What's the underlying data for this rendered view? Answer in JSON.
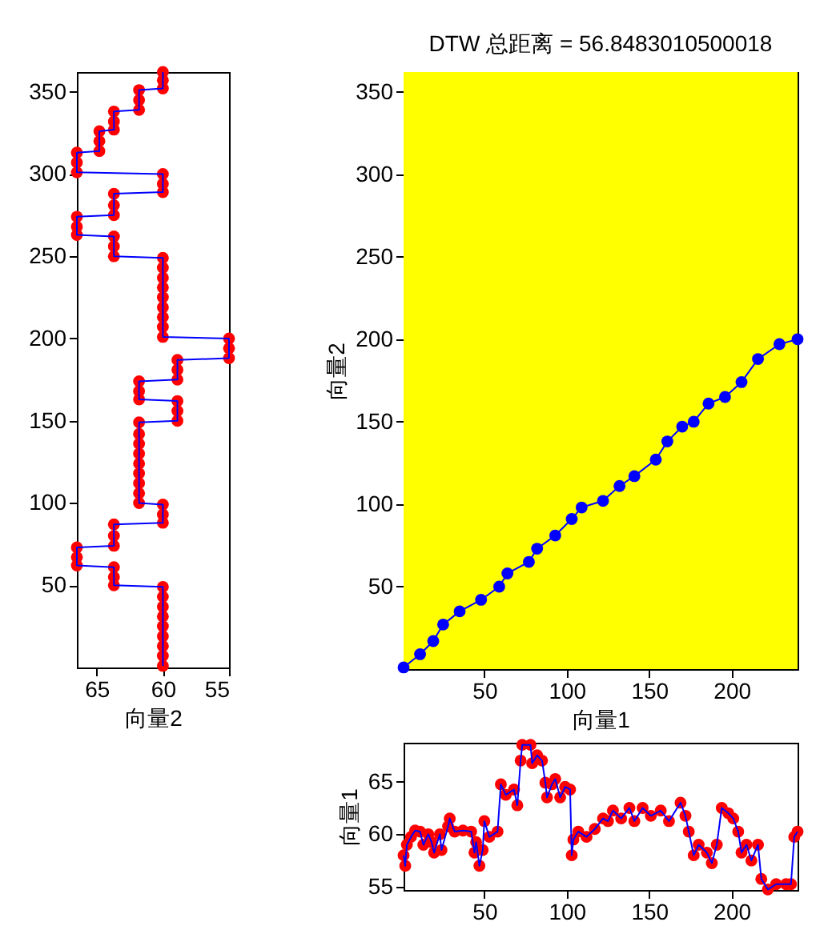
{
  "chart_data": [
    {
      "type": "line",
      "orientation": "horizontal",
      "xlabel": "向量2",
      "xlim": [
        66.5,
        55
      ],
      "xticks": [
        65,
        60,
        55
      ],
      "ylim": [
        0,
        362
      ],
      "yticks": [
        50,
        100,
        150,
        200,
        250,
        300,
        350
      ],
      "x": [
        1,
        7,
        13,
        19,
        25,
        31,
        37,
        43,
        49,
        50,
        55,
        61,
        62,
        67,
        73,
        74,
        80,
        87,
        88,
        93,
        99,
        100,
        106,
        112,
        118,
        124,
        130,
        136,
        142,
        149,
        150,
        156,
        162,
        163,
        168,
        174,
        175,
        181,
        187,
        188,
        194,
        200,
        201,
        207,
        213,
        219,
        225,
        231,
        237,
        243,
        249,
        250,
        256,
        262,
        263,
        268,
        274,
        275,
        281,
        288,
        289,
        294,
        300,
        301,
        307,
        313,
        314,
        320,
        326,
        327,
        332,
        338,
        339,
        345,
        351,
        352,
        357,
        362
      ],
      "series": [
        {
          "type": "scatter",
          "color": "#ff0000",
          "marker": "circle",
          "values": [
            60,
            60,
            60,
            60,
            60,
            60,
            60,
            60,
            60,
            63.7,
            63.7,
            63.7,
            66.5,
            66.5,
            66.5,
            63.7,
            63.7,
            63.7,
            60,
            60,
            60,
            61.8,
            61.8,
            61.8,
            61.8,
            61.8,
            61.8,
            61.8,
            61.8,
            61.8,
            58.9,
            58.9,
            58.9,
            61.8,
            61.8,
            61.8,
            58.9,
            58.9,
            58.9,
            55,
            55,
            55,
            60,
            60,
            60,
            60,
            60,
            60,
            60,
            60,
            60,
            63.7,
            63.7,
            63.7,
            66.5,
            66.5,
            66.5,
            63.7,
            63.7,
            63.7,
            60,
            60,
            60,
            66.5,
            66.5,
            66.5,
            64.8,
            64.8,
            64.8,
            63.7,
            63.7,
            63.7,
            61.8,
            61.8,
            61.8,
            60,
            60,
            60
          ]
        },
        {
          "type": "line",
          "color": "#0000ff",
          "line_style": "solid",
          "values": [
            60,
            60,
            60,
            60,
            60,
            60,
            60,
            60,
            60,
            63.7,
            63.7,
            63.7,
            66.5,
            66.5,
            66.5,
            63.7,
            63.7,
            63.7,
            60,
            60,
            60,
            61.8,
            61.8,
            61.8,
            61.8,
            61.8,
            61.8,
            61.8,
            61.8,
            61.8,
            58.9,
            58.9,
            58.9,
            61.8,
            61.8,
            61.8,
            58.9,
            58.9,
            58.9,
            55,
            55,
            55,
            60,
            60,
            60,
            60,
            60,
            60,
            60,
            60,
            60,
            63.7,
            63.7,
            63.7,
            66.5,
            66.5,
            66.5,
            63.7,
            63.7,
            63.7,
            60,
            60,
            60,
            66.5,
            66.5,
            66.5,
            64.8,
            64.8,
            64.8,
            63.7,
            63.7,
            63.7,
            61.8,
            61.8,
            61.8,
            60,
            60,
            60
          ]
        }
      ]
    },
    {
      "type": "line",
      "title": "DTW 总距离 = 56.8483010500018",
      "xlabel": "向量1",
      "ylabel": "向量2",
      "xlim": [
        1,
        240
      ],
      "xticks": [
        50,
        100,
        150,
        200
      ],
      "ylim": [
        0,
        362
      ],
      "yticks": [
        50,
        100,
        150,
        200,
        250,
        300,
        350
      ],
      "marker": "circle",
      "bands": [
        {
          "axis": "x",
          "from": 1,
          "to": 240,
          "color": "#ffff00"
        }
      ],
      "x": [
        1,
        11,
        19,
        25,
        35,
        48,
        59,
        64,
        77,
        82,
        93,
        103,
        109,
        122,
        132,
        141,
        154,
        161,
        170,
        177,
        186,
        196,
        206,
        216,
        229,
        240
      ],
      "series": [
        {
          "color": "#0000ff",
          "line_style": "solid",
          "values": [
            1,
            9,
            17,
            27,
            35,
            42,
            50,
            58,
            65,
            73,
            81,
            91,
            98,
            102,
            111,
            117,
            127,
            138,
            147,
            150,
            161,
            165,
            174,
            188,
            197,
            200
          ]
        }
      ]
    },
    {
      "type": "line",
      "ylabel": "向量1",
      "xlim": [
        1,
        240
      ],
      "xticks": [
        50,
        100,
        150,
        200
      ],
      "ylim": [
        54.7,
        68.7
      ],
      "yticks": [
        55,
        60,
        65
      ],
      "x": [
        1,
        2,
        3,
        5.5,
        8,
        11,
        13,
        16,
        18,
        19.5,
        23,
        24,
        28,
        29,
        32,
        37,
        42,
        44,
        45,
        47,
        49,
        50,
        53,
        58,
        60,
        63,
        68,
        70,
        72,
        73,
        78,
        79,
        82,
        85,
        87,
        88,
        91,
        93,
        96,
        99,
        102,
        103,
        104,
        107,
        112,
        117,
        122,
        125,
        128,
        133,
        138,
        141,
        146,
        151,
        157,
        162,
        169,
        172,
        174,
        177,
        180,
        185,
        188,
        191,
        194,
        198,
        201,
        204,
        206,
        209,
        212,
        216,
        218,
        222,
        227,
        233,
        236,
        238,
        240
      ],
      "series": [
        {
          "type": "scatter",
          "color": "#ff0000",
          "marker": "circle",
          "values": [
            58,
            57,
            59,
            59.75,
            60.35,
            60.25,
            59,
            60,
            59.25,
            58.25,
            60,
            58.5,
            60.75,
            61.5,
            60.25,
            60.35,
            60.25,
            58.25,
            59.25,
            57,
            58.5,
            61.25,
            59.75,
            60.25,
            64.75,
            63.75,
            64.25,
            62.75,
            67,
            68.5,
            68.5,
            66.75,
            67.5,
            67,
            64.9,
            63.5,
            64.75,
            65.25,
            63.5,
            64.5,
            64.25,
            58,
            59.5,
            60.25,
            59.75,
            60.5,
            61.5,
            61.25,
            62.25,
            61.5,
            62.5,
            61.25,
            62.5,
            61.75,
            62.25,
            61.25,
            63,
            61.75,
            60.25,
            58,
            59,
            58.25,
            57.25,
            59,
            62.5,
            62,
            61.5,
            60.25,
            58.25,
            59,
            57.5,
            59,
            55.75,
            54.75,
            55.25,
            55.25,
            55.25,
            59.75,
            60.25
          ]
        },
        {
          "type": "line",
          "color": "#0000ff",
          "line_style": "solid",
          "values": [
            58,
            57,
            59,
            59.75,
            60.35,
            60.25,
            59,
            60,
            59.25,
            58.25,
            60,
            58.5,
            60.75,
            61.5,
            60.25,
            60.35,
            60.25,
            58.25,
            59.25,
            57,
            58.5,
            61.25,
            59.75,
            60.25,
            64.75,
            63.75,
            64.25,
            62.75,
            67,
            68.5,
            68.5,
            66.75,
            67.5,
            67,
            64.9,
            63.5,
            64.75,
            65.25,
            63.5,
            64.5,
            64.25,
            58,
            59.5,
            60.25,
            59.75,
            60.5,
            61.5,
            61.25,
            62.25,
            61.5,
            62.5,
            61.25,
            62.5,
            61.75,
            62.25,
            61.25,
            63,
            61.75,
            60.25,
            58,
            59,
            58.25,
            57.25,
            59,
            62.5,
            62,
            61.5,
            60.25,
            58.25,
            59,
            57.5,
            59,
            55.75,
            54.75,
            55.25,
            55.25,
            55.25,
            59.75,
            60.25
          ]
        }
      ]
    }
  ]
}
